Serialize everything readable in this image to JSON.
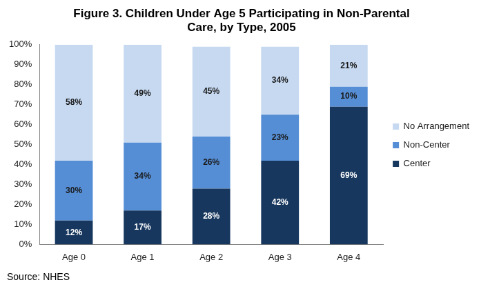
{
  "chart_data": {
    "type": "bar",
    "title": [
      "Figure 3. Children Under Age 5 Participating in Non-Parental",
      "Care, by Type, 2005"
    ],
    "source": "Source: NHES",
    "categories": [
      "Age 0",
      "Age 1",
      "Age 2",
      "Age 3",
      "Age 4"
    ],
    "series": [
      {
        "name": "Center",
        "color": "#17375e",
        "values": [
          12,
          17,
          28,
          42,
          69
        ],
        "value_labels": [
          "12%",
          "17%",
          "28%",
          "42%",
          "69%"
        ]
      },
      {
        "name": "Non-Center",
        "color": "#558ed5",
        "values": [
          30,
          34,
          26,
          23,
          10
        ],
        "value_labels": [
          "30%",
          "34%",
          "26%",
          "23%",
          "10%"
        ]
      },
      {
        "name": "No Arrangement",
        "color": "#c6d9f1",
        "values": [
          58,
          49,
          45,
          34,
          21
        ],
        "value_labels": [
          "58%",
          "49%",
          "45%",
          "34%",
          "21%"
        ]
      }
    ],
    "stacked": true,
    "data_labels": true,
    "legend": "right",
    "grid": false,
    "ylim": [
      0,
      100
    ],
    "yticks": [
      {
        "value": 0,
        "label": "0%"
      },
      {
        "value": 10,
        "label": "10%"
      },
      {
        "value": 20,
        "label": "20%"
      },
      {
        "value": 30,
        "label": "30%"
      },
      {
        "value": 40,
        "label": "40%"
      },
      {
        "value": 50,
        "label": "50%"
      },
      {
        "value": 60,
        "label": "60%"
      },
      {
        "value": 70,
        "label": "70%"
      },
      {
        "value": 80,
        "label": "80%"
      },
      {
        "value": 90,
        "label": "90%"
      },
      {
        "value": 100,
        "label": "100%"
      }
    ]
  }
}
